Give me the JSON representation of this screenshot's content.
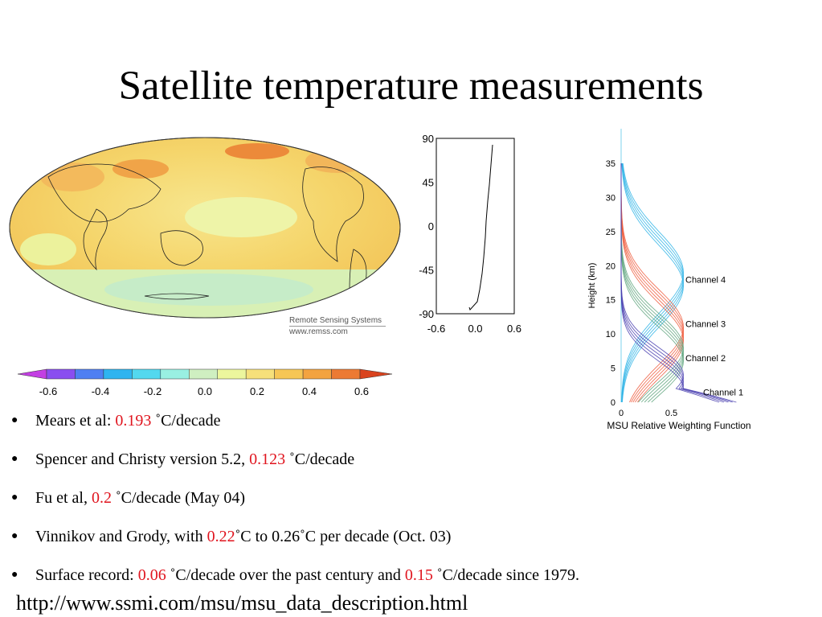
{
  "title": "Satellite temperature measurements",
  "map": {
    "credit_line1": "Remote Sensing Systems",
    "credit_line2": "www.remss.com",
    "colorbar_ticks": [
      "-0.6",
      "-0.4",
      "-0.2",
      "0.0",
      "0.2",
      "0.4",
      "0.6"
    ],
    "colorbar_colors": [
      "#c33fe3",
      "#8a4ef0",
      "#4f7ff2",
      "#2fb4f0",
      "#53d8ef",
      "#99f0e2",
      "#cfefc1",
      "#ecf69d",
      "#f6e07a",
      "#f6c655",
      "#f3a340",
      "#ec7a33",
      "#d9431e"
    ]
  },
  "profile_chart": {
    "y_ticks": [
      "90",
      "45",
      "0",
      "-45",
      "-90"
    ],
    "x_ticks": [
      "-0.6",
      "0.0",
      "0.6"
    ]
  },
  "weighting_chart": {
    "ylabel": "Height (km)",
    "xlabel": "MSU Relative Weighting Function",
    "y_ticks": [
      "35",
      "30",
      "25",
      "20",
      "15",
      "10",
      "5",
      "0"
    ],
    "x_ticks": [
      "0",
      "0.5"
    ],
    "channels": [
      {
        "name": "Channel 4",
        "color": "#2fb4e6"
      },
      {
        "name": "Channel 3",
        "color": "#ef5a3c"
      },
      {
        "name": "Channel 2",
        "color": "#5fa47e"
      },
      {
        "name": "Channel 1",
        "color": "#4a3fb0"
      }
    ]
  },
  "bullets": [
    {
      "before": "Mears et al: ",
      "value": "0.193",
      "after": " ˚C/decade"
    },
    {
      "before": "Spencer and Christy version 5.2, ",
      "value": "0.123",
      "after": " ˚C/decade"
    },
    {
      "before": "Fu et al, ",
      "value": "0.2",
      "after": " ˚C/decade (May 04)"
    },
    {
      "before": "Vinnikov and Grody, with ",
      "value": "0.22",
      "after": "˚C to 0.26˚C per decade (Oct. 03)"
    },
    {
      "before": "Surface record: ",
      "value": "0.06",
      "after": " ˚C/decade over the past century and ",
      "value2": "0.15",
      "after2": " ˚C/decade since 1979."
    }
  ],
  "bullet_marker": "●",
  "url": "http://www.ssmi.com/msu/msu_data_description.html"
}
